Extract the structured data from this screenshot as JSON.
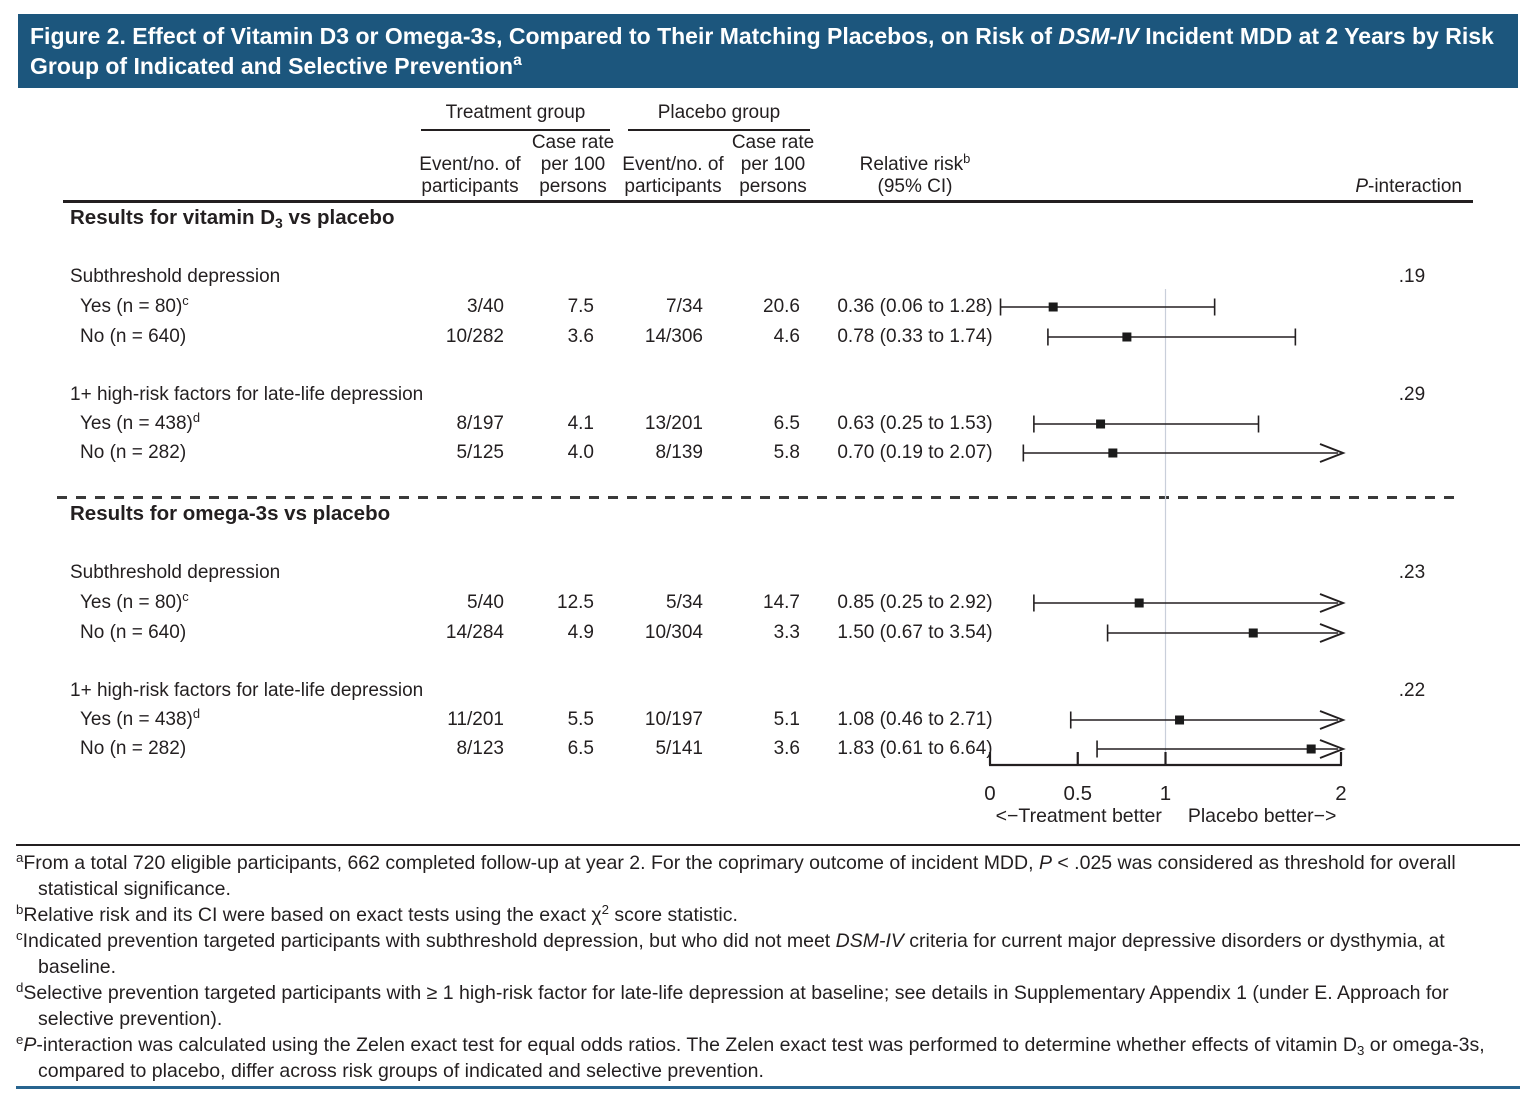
{
  "title": {
    "segments": [
      {
        "t": "Figure 2. Effect of Vitamin D3 or Omega-3s, Compared to Their Matching Placebos, on Risk of "
      },
      {
        "t": "DSM-IV",
        "i": true
      },
      {
        "t": " Incident MDD at 2 Years by Risk Group of Indicated and Selective Prevention"
      },
      {
        "t": "a",
        "sup": true
      }
    ]
  },
  "header": {
    "treatment_group": "Treatment group",
    "placebo_group": "Placebo group",
    "event_participants": "Event/no. of\nparticipants",
    "case_rate": "Case rate\nper 100\npersons",
    "relative_risk": [
      {
        "t": "Relative risk"
      },
      {
        "t": "b",
        "sup": true
      },
      {
        "t": "\n(95% CI)"
      }
    ],
    "p_interaction": [
      {
        "t": "P",
        "i": true
      },
      {
        "t": "-interaction"
      }
    ]
  },
  "chart_data": {
    "type": "forest",
    "x_axis": {
      "tick_values": [
        0,
        0.5,
        1,
        2
      ],
      "tick_labels": [
        "0",
        "0.5",
        "1",
        "2"
      ],
      "range": [
        0,
        2
      ],
      "reference_line": 1,
      "caption_left": "<−Treatment better",
      "caption_right": "Placebo better−>"
    },
    "sections": [
      {
        "title": [
          {
            "t": "Results for vitamin D"
          },
          {
            "t": "3",
            "sub": true
          },
          {
            "t": " vs placebo"
          }
        ],
        "groups": [
          {
            "label": "Subthreshold depression",
            "p_interaction": ".19",
            "rows": [
              {
                "label": [
                  {
                    "t": "Yes (n = 80)"
                  },
                  {
                    "t": "c",
                    "sup": true
                  }
                ],
                "treatment_events": "3/40",
                "treatment_rate": "7.5",
                "placebo_events": "7/34",
                "placebo_rate": "20.6",
                "rr_text": "0.36 (0.06 to 1.28)",
                "estimate": 0.36,
                "ci_low": 0.06,
                "ci_high": 1.28
              },
              {
                "label": [
                  {
                    "t": "No (n = 640)"
                  }
                ],
                "treatment_events": "10/282",
                "treatment_rate": "3.6",
                "placebo_events": "14/306",
                "placebo_rate": "4.6",
                "rr_text": "0.78 (0.33 to 1.74)",
                "estimate": 0.78,
                "ci_low": 0.33,
                "ci_high": 1.74
              }
            ]
          },
          {
            "label": "1+ high-risk factors for late-life depression",
            "p_interaction": ".29",
            "rows": [
              {
                "label": [
                  {
                    "t": "Yes (n = 438)"
                  },
                  {
                    "t": "d",
                    "sup": true
                  }
                ],
                "treatment_events": "8/197",
                "treatment_rate": "4.1",
                "placebo_events": "13/201",
                "placebo_rate": "6.5",
                "rr_text": "0.63 (0.25 to 1.53)",
                "estimate": 0.63,
                "ci_low": 0.25,
                "ci_high": 1.53
              },
              {
                "label": [
                  {
                    "t": "No (n = 282)"
                  }
                ],
                "treatment_events": "5/125",
                "treatment_rate": "4.0",
                "placebo_events": "8/139",
                "placebo_rate": "5.8",
                "rr_text": "0.70 (0.19 to 2.07)",
                "estimate": 0.7,
                "ci_low": 0.19,
                "ci_high": 2.07
              }
            ]
          }
        ]
      },
      {
        "title": [
          {
            "t": "Results for omega-3s vs placebo"
          }
        ],
        "groups": [
          {
            "label": "Subthreshold depression",
            "p_interaction": ".23",
            "rows": [
              {
                "label": [
                  {
                    "t": "Yes (n = 80)"
                  },
                  {
                    "t": "c",
                    "sup": true
                  }
                ],
                "treatment_events": "5/40",
                "treatment_rate": "12.5",
                "placebo_events": "5/34",
                "placebo_rate": "14.7",
                "rr_text": "0.85 (0.25 to 2.92)",
                "estimate": 0.85,
                "ci_low": 0.25,
                "ci_high": 2.92
              },
              {
                "label": [
                  {
                    "t": "No (n = 640)"
                  }
                ],
                "treatment_events": "14/284",
                "treatment_rate": "4.9",
                "placebo_events": "10/304",
                "placebo_rate": "3.3",
                "rr_text": "1.50 (0.67 to 3.54)",
                "estimate": 1.5,
                "ci_low": 0.67,
                "ci_high": 3.54
              }
            ]
          },
          {
            "label": "1+ high-risk factors for late-life depression",
            "p_interaction": ".22",
            "rows": [
              {
                "label": [
                  {
                    "t": "Yes (n = 438)"
                  },
                  {
                    "t": "d",
                    "sup": true
                  }
                ],
                "treatment_events": "11/201",
                "treatment_rate": "5.5",
                "placebo_events": "10/197",
                "placebo_rate": "5.1",
                "rr_text": "1.08 (0.46 to 2.71)",
                "estimate": 1.08,
                "ci_low": 0.46,
                "ci_high": 2.71
              },
              {
                "label": [
                  {
                    "t": "No (n = 282)"
                  }
                ],
                "treatment_events": "8/123",
                "treatment_rate": "6.5",
                "placebo_events": "5/141",
                "placebo_rate": "3.6",
                "rr_text": "1.83 (0.61 to 6.64)",
                "estimate": 1.83,
                "ci_low": 0.61,
                "ci_high": 6.64
              }
            ]
          }
        ]
      }
    ]
  },
  "footnotes": [
    [
      {
        "t": "a",
        "sup": true
      },
      {
        "t": "From a total 720 eligible participants, 662 completed follow-up at year 2. For the coprimary outcome of incident MDD, "
      },
      {
        "t": "P",
        "i": true
      },
      {
        "t": " < .025 was considered as threshold for overall statistical significance."
      }
    ],
    [
      {
        "t": "b",
        "sup": true
      },
      {
        "t": "Relative risk and its CI were based on exact tests using the exact χ"
      },
      {
        "t": "2",
        "sup": true
      },
      {
        "t": " score statistic."
      }
    ],
    [
      {
        "t": "c",
        "sup": true
      },
      {
        "t": "Indicated prevention targeted participants with subthreshold depression, but who did not meet "
      },
      {
        "t": "DSM-IV",
        "i": true
      },
      {
        "t": " criteria for current major depressive disorders or dysthymia, at baseline."
      }
    ],
    [
      {
        "t": "d",
        "sup": true
      },
      {
        "t": "Selective prevention targeted participants with ≥ 1 high-risk factor for late-life depression at baseline; see details in Supplementary Appendix 1 (under E. Approach for selective prevention)."
      }
    ],
    [
      {
        "t": "e",
        "sup": true
      },
      {
        "t": "P",
        "i": true
      },
      {
        "t": "-interaction was calculated using the Zelen exact test for equal odds ratios. The Zelen exact test was performed to determine whether effects of vitamin D"
      },
      {
        "t": "3",
        "sub": true
      },
      {
        "t": " or omega-3s, compared to placebo, differ across risk groups of indicated and selective prevention."
      }
    ]
  ],
  "colors": {
    "header_bg": "#1C567D",
    "text": "#231F20",
    "rule_blue": "#27648F",
    "reference_line": "#C9CFDA",
    "marker": "#1A1A1A"
  }
}
